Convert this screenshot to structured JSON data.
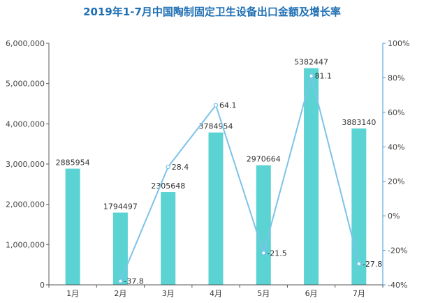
{
  "chart_data": {
    "type": "bar+line",
    "title": "2019年1-7月中国陶制固定卫生设备出口金额及增长率",
    "categories": [
      "1月",
      "2月",
      "3月",
      "4月",
      "5月",
      "6月",
      "7月"
    ],
    "series": [
      {
        "type": "bar",
        "axis": "left",
        "values": [
          2885954,
          1794497,
          2305648,
          3784954,
          2970664,
          5382447,
          3883140
        ]
      },
      {
        "type": "line",
        "axis": "right",
        "values": [
          null,
          -37.8,
          28.4,
          64.1,
          -21.5,
          81.1,
          -27.8
        ]
      }
    ],
    "left_axis": {
      "ylim": [
        0,
        6000000
      ],
      "ticks": [
        "0",
        "1,000,000",
        "2,000,000",
        "3,000,000",
        "4,000,000",
        "5,000,000",
        "6,000,000"
      ]
    },
    "right_axis": {
      "ylim": [
        -40,
        100
      ],
      "ticks": [
        "-40%",
        "-20%",
        "0%",
        "20%",
        "40%",
        "60%",
        "80%",
        "100%"
      ]
    },
    "grid": false,
    "colors": {
      "bar": "#5bd3d3",
      "line": "#7ec2ea",
      "axis_left": "#5a5a5a",
      "axis_right": "#3a9bdc",
      "title": "#1f6fb3"
    }
  }
}
